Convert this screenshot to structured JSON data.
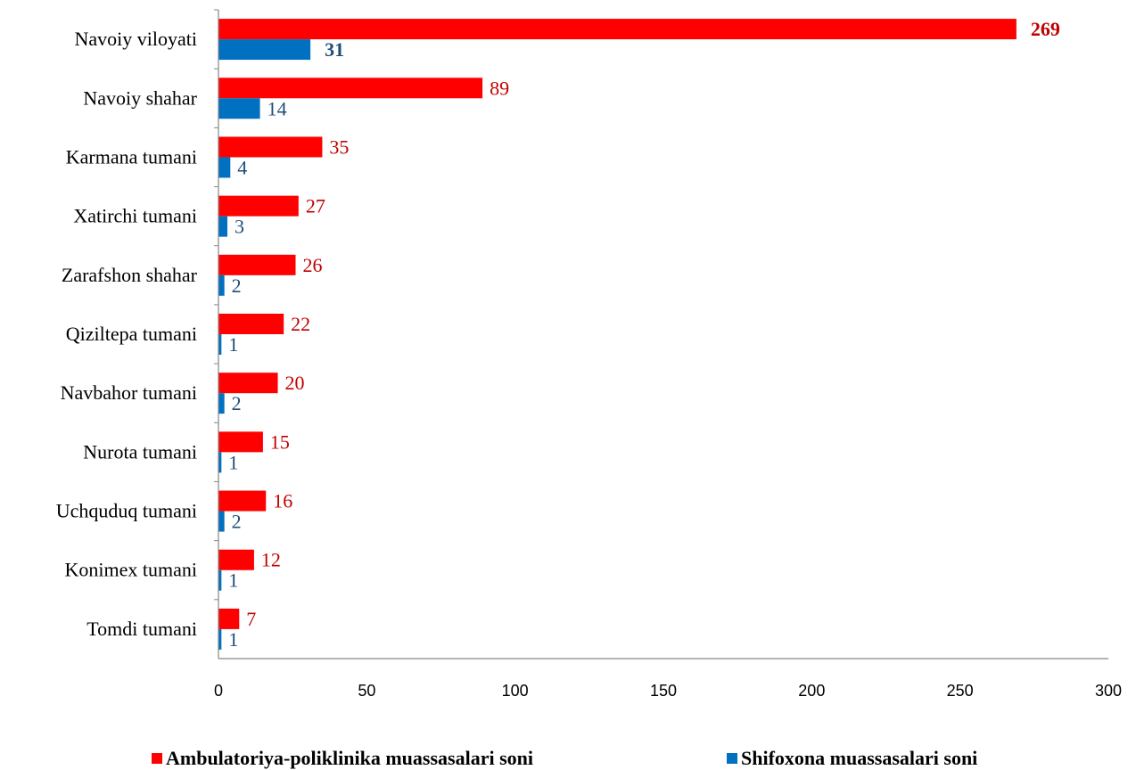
{
  "chart_data": {
    "type": "bar",
    "orientation": "horizontal",
    "categories": [
      "Navoiy viloyati",
      "Navoiy shahar",
      "Karmana tumani",
      "Xatirchi tumani",
      "Zarafshon shahar",
      "Qiziltepa tumani",
      "Navbahor tumani",
      "Nurota tumani",
      "Uchquduq tumani",
      "Konimex tumani",
      "Tomdi tumani"
    ],
    "series": [
      {
        "name": "Ambulatoriya-poliklinika muassasalari soni",
        "color": "#ff0000",
        "label_color": "#c00000",
        "values": [
          269,
          89,
          35,
          27,
          26,
          22,
          20,
          15,
          16,
          12,
          7
        ]
      },
      {
        "name": "Shifoxona muassasalari soni",
        "color": "#0070c0",
        "label_color": "#1f4e79",
        "values": [
          31,
          14,
          4,
          3,
          2,
          1,
          2,
          1,
          2,
          1,
          1
        ]
      }
    ],
    "bold_value_category_index": 0,
    "xlim": [
      0,
      300
    ],
    "xticks": [
      0,
      50,
      100,
      150,
      200,
      250,
      300
    ],
    "grid": false,
    "legend_position": "bottom",
    "title": "",
    "xlabel": "",
    "ylabel": ""
  }
}
